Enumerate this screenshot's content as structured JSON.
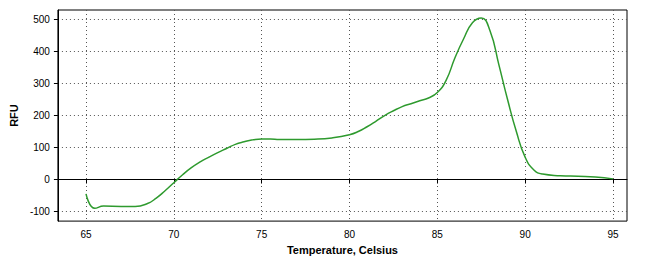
{
  "chart_data": {
    "type": "line",
    "x_label": "Temperature, Celsius",
    "y_label": "RFU",
    "x": [
      65.0,
      65.5,
      66,
      67,
      67.8,
      68.5,
      69,
      69.5,
      70,
      70.5,
      71,
      71.5,
      72,
      72.5,
      73,
      73.5,
      74,
      74.5,
      75,
      75.5,
      76,
      77,
      78,
      79,
      80,
      80.5,
      81,
      81.5,
      82,
      82.5,
      83,
      83.5,
      84,
      84.5,
      85,
      85.5,
      86,
      86.5,
      87,
      87.5,
      88,
      88.5,
      89,
      89.5,
      90,
      90.5,
      91,
      92,
      93,
      94,
      95
    ],
    "values": [
      -45,
      -90,
      -83,
      -84,
      -84,
      -75,
      -58,
      -35,
      -10,
      15,
      37,
      55,
      70,
      84,
      97,
      110,
      118,
      124,
      127,
      127,
      125,
      125,
      126,
      130,
      140,
      150,
      165,
      182,
      200,
      215,
      228,
      237,
      246,
      255,
      272,
      310,
      380,
      440,
      490,
      505,
      465,
      360,
      250,
      150,
      70,
      30,
      17,
      12,
      10,
      8,
      2
    ],
    "color": "#2e9a2e",
    "line_style": "solid",
    "xlim": [
      63.4,
      95.8
    ],
    "xticks": [
      65,
      70,
      75,
      80,
      85,
      90,
      95
    ],
    "ylim": [
      -130,
      530
    ],
    "yticks": [
      -100,
      0,
      100,
      200,
      300,
      400,
      500
    ],
    "grid": true
  }
}
